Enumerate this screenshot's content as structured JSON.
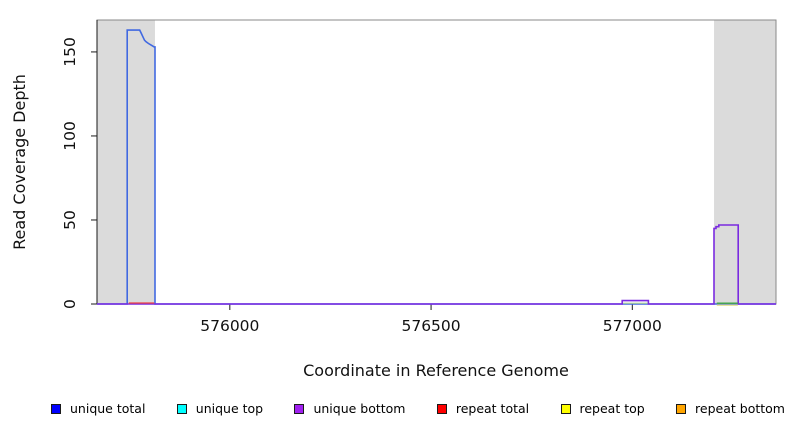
{
  "chart_data": {
    "type": "line",
    "title": "",
    "xlabel": "Coordinate in Reference Genome",
    "ylabel": "Read Coverage Depth",
    "xlim": [
      575670,
      577357
    ],
    "ylim": [
      0,
      169
    ],
    "xticks": [
      576000,
      576500,
      577000
    ],
    "yticks": [
      0,
      50,
      100,
      150
    ],
    "grid": false,
    "legend_position": "bottom",
    "plot_bg": "#FFFFFF",
    "shaded_color": "#DBDBDB",
    "box_color": "#8A8A8A",
    "axis_color": "#1A1A1A",
    "text_color": "#111111",
    "swatch_border": "#1A1A1A",
    "shaded_regions": [
      {
        "name": "left shaded region",
        "x0": 575670,
        "x1": 575814
      },
      {
        "name": "right shaded region",
        "x0": 577203,
        "x1": 577357
      }
    ],
    "series": [
      {
        "name": "unique total",
        "color": "#0000FF"
      },
      {
        "name": "unique top",
        "color": "#00FFFF"
      },
      {
        "name": "unique bottom",
        "color": "#A020F0"
      },
      {
        "name": "repeat total",
        "color": "#FF0000"
      },
      {
        "name": "repeat top",
        "color": "#FFFF00"
      },
      {
        "name": "repeat bottom",
        "color": "#FFA500"
      }
    ],
    "traces": [
      {
        "name": "unique total curve",
        "color": "#4169E1",
        "width": 1.6,
        "points": [
          [
            575670,
            0
          ],
          [
            575745,
            0
          ],
          [
            575745,
            163
          ],
          [
            575776,
            163
          ],
          [
            575780,
            161
          ],
          [
            575784,
            159
          ],
          [
            575788,
            157
          ],
          [
            575792,
            156
          ],
          [
            575798,
            155
          ],
          [
            575805,
            154
          ],
          [
            575812,
            153
          ],
          [
            575814,
            153
          ],
          [
            575814,
            0
          ],
          [
            577357,
            0
          ]
        ]
      },
      {
        "name": "unique bottom curve",
        "color": "#7A2BE0",
        "width": 1.6,
        "points": [
          [
            575670,
            0
          ],
          [
            576975,
            0
          ],
          [
            576975,
            2
          ],
          [
            577040,
            2
          ],
          [
            577040,
            0
          ],
          [
            577203,
            0
          ],
          [
            577203,
            45
          ],
          [
            577208,
            45
          ],
          [
            577208,
            46
          ],
          [
            577215,
            46
          ],
          [
            577215,
            47
          ],
          [
            577263,
            47
          ],
          [
            577263,
            0
          ],
          [
            577357,
            0
          ]
        ]
      },
      {
        "name": "repeat total segment under left peak",
        "color": "#EE4444",
        "width": 1.3,
        "points": [
          [
            575749,
            0.6
          ],
          [
            575812,
            0.6
          ]
        ]
      },
      {
        "name": "repeat top segment under right peak",
        "color": "#E6E28E",
        "width": 1.3,
        "points": [
          [
            577210,
            -0.7
          ],
          [
            577262,
            -0.7
          ]
        ]
      },
      {
        "name": "unique top segment under right peak",
        "color": "#44AA44",
        "width": 1.3,
        "points": [
          [
            577210,
            0.5
          ],
          [
            577262,
            0.5
          ]
        ]
      },
      {
        "name": "segment under small bump",
        "color": "#B7DC96",
        "width": 1.2,
        "points": [
          [
            576977,
            0.5
          ],
          [
            577038,
            0.5
          ]
        ]
      }
    ]
  }
}
